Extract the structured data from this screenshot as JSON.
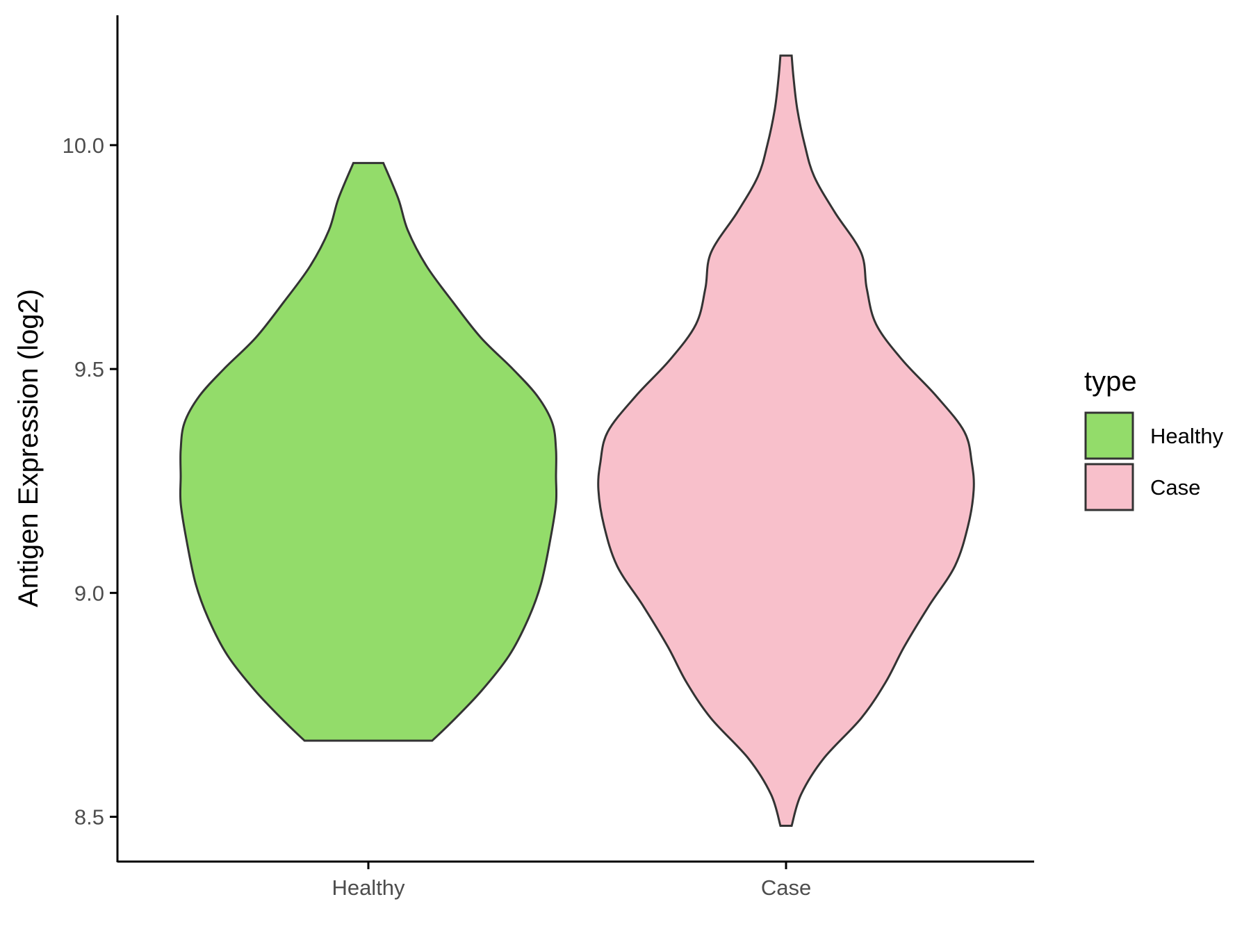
{
  "chart_data": {
    "type": "violin",
    "title": "",
    "xlabel": "",
    "ylabel": "Antigen Expression (log2)",
    "ylim": [
      8.4,
      10.29
    ],
    "yticks": [
      "8.5",
      "9.0",
      "9.5",
      "10.0"
    ],
    "categories": [
      "Healthy",
      "Case"
    ],
    "legend": {
      "title": "type",
      "position": "right",
      "entries": [
        {
          "label": "Healthy",
          "color": "#93dc6a"
        },
        {
          "label": "Case",
          "color": "#f8c0cb"
        }
      ]
    },
    "grid": false,
    "series": [
      {
        "name": "Healthy",
        "color": "#93dc6a",
        "min": 8.67,
        "max": 9.96,
        "density": [
          [
            8.67,
            0.34
          ],
          [
            8.71,
            0.44
          ],
          [
            8.78,
            0.6
          ],
          [
            8.86,
            0.75
          ],
          [
            8.94,
            0.85
          ],
          [
            9.02,
            0.92
          ],
          [
            9.12,
            0.97
          ],
          [
            9.2,
            1.0
          ],
          [
            9.26,
            1.0
          ],
          [
            9.32,
            1.0
          ],
          [
            9.38,
            0.98
          ],
          [
            9.44,
            0.9
          ],
          [
            9.5,
            0.77
          ],
          [
            9.57,
            0.6
          ],
          [
            9.65,
            0.45
          ],
          [
            9.73,
            0.31
          ],
          [
            9.81,
            0.21
          ],
          [
            9.88,
            0.16
          ],
          [
            9.96,
            0.08
          ]
        ]
      },
      {
        "name": "Case",
        "color": "#f8c0cb",
        "min": 8.48,
        "max": 10.2,
        "density": [
          [
            8.48,
            0.03
          ],
          [
            8.55,
            0.08
          ],
          [
            8.63,
            0.2
          ],
          [
            8.72,
            0.4
          ],
          [
            8.8,
            0.53
          ],
          [
            8.88,
            0.63
          ],
          [
            8.97,
            0.76
          ],
          [
            9.06,
            0.9
          ],
          [
            9.15,
            0.97
          ],
          [
            9.23,
            1.0
          ],
          [
            9.29,
            0.99
          ],
          [
            9.36,
            0.95
          ],
          [
            9.44,
            0.8
          ],
          [
            9.52,
            0.62
          ],
          [
            9.6,
            0.48
          ],
          [
            9.68,
            0.43
          ],
          [
            9.76,
            0.4
          ],
          [
            9.85,
            0.26
          ],
          [
            9.93,
            0.15
          ],
          [
            10.0,
            0.1
          ],
          [
            10.08,
            0.06
          ],
          [
            10.15,
            0.04
          ],
          [
            10.2,
            0.03
          ]
        ]
      }
    ]
  }
}
